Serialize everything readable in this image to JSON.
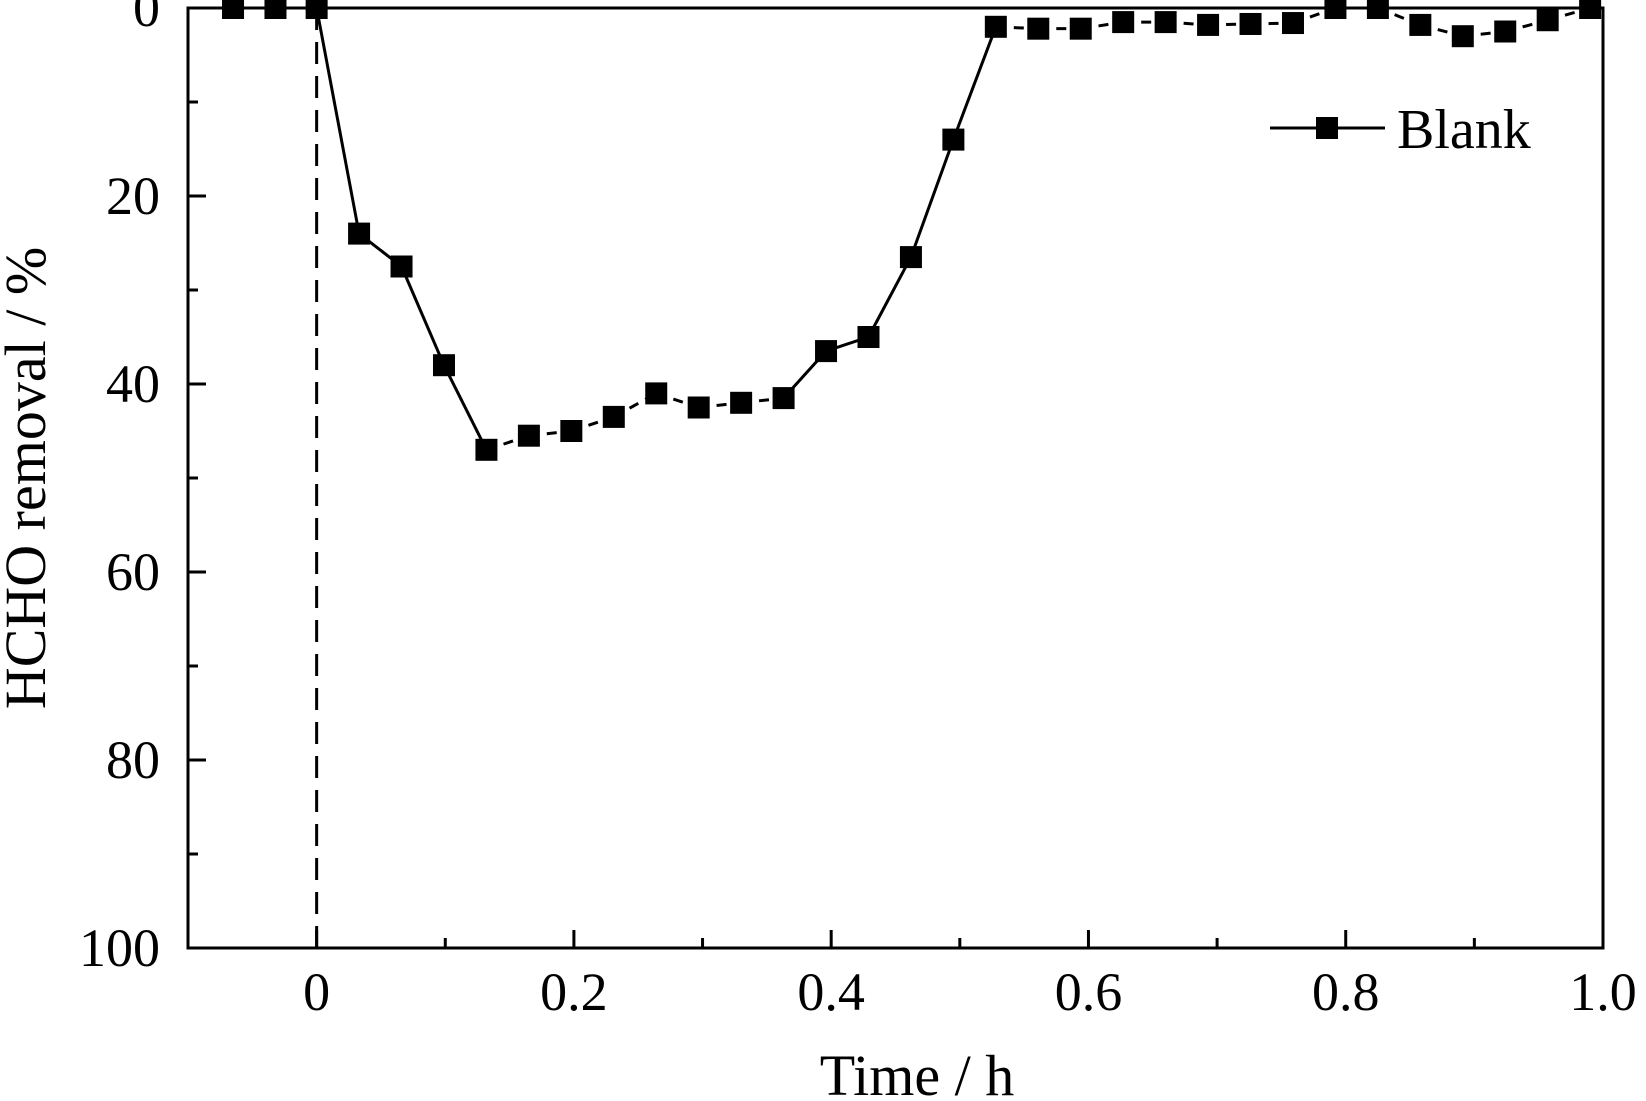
{
  "chart_data": {
    "type": "line",
    "title": "",
    "xlabel": "Time / h",
    "ylabel": "HCHO removal / %",
    "xlim": [
      -0.1,
      1.0
    ],
    "ylim": [
      0,
      100
    ],
    "y_inverted": true,
    "x_ticks": [
      0,
      0.2,
      0.4,
      0.6,
      0.8,
      1.0
    ],
    "x_tick_labels": [
      "0",
      "0.2",
      "0.4",
      "0.6",
      "0.8",
      "1.0"
    ],
    "x_minor_ticks": [
      -0.1,
      0.1,
      0.3,
      0.5,
      0.7,
      0.9
    ],
    "y_ticks": [
      0,
      20,
      40,
      60,
      80,
      100
    ],
    "y_tick_labels": [
      "0",
      "20",
      "40",
      "60",
      "80",
      "100"
    ],
    "y_minor_ticks": [
      10,
      30,
      50,
      70,
      90
    ],
    "reference_lines": [
      {
        "axis": "x",
        "value": 0,
        "style": "dashed"
      }
    ],
    "grid": false,
    "legend": {
      "position": "top-right",
      "entries": [
        "Blank"
      ]
    },
    "series": [
      {
        "name": "Blank",
        "marker": "square",
        "color": "#000000",
        "x": [
          -0.065,
          -0.032,
          0.0,
          0.033,
          0.066,
          0.099,
          0.132,
          0.165,
          0.198,
          0.231,
          0.264,
          0.297,
          0.33,
          0.363,
          0.396,
          0.429,
          0.462,
          0.495,
          0.528,
          0.561,
          0.594,
          0.627,
          0.66,
          0.693,
          0.726,
          0.759,
          0.792,
          0.825,
          0.858,
          0.891,
          0.924,
          0.957,
          0.99
        ],
        "y": [
          0,
          0,
          0,
          24,
          27.5,
          38,
          47,
          45.5,
          45,
          43.5,
          41,
          42.5,
          42,
          41.5,
          36.5,
          35,
          26.5,
          14,
          2,
          2.2,
          2.2,
          1.5,
          1.5,
          1.8,
          1.7,
          1.6,
          0,
          0,
          1.8,
          3,
          2.5,
          1.3,
          0
        ],
        "segment_styles": [
          "dashed",
          "dashed",
          "solid",
          "solid",
          "solid",
          "solid",
          "dashed",
          "dashed",
          "dashed",
          "dashed",
          "dashed",
          "dashed",
          "dashed",
          "solid",
          "solid",
          "solid",
          "solid",
          "solid",
          "dashed",
          "dashed",
          "dashed",
          "dashed",
          "dashed",
          "dashed",
          "dashed",
          "dashed",
          "dashed",
          "dashed",
          "dashed",
          "dashed",
          "dashed",
          "dashed"
        ]
      }
    ]
  }
}
